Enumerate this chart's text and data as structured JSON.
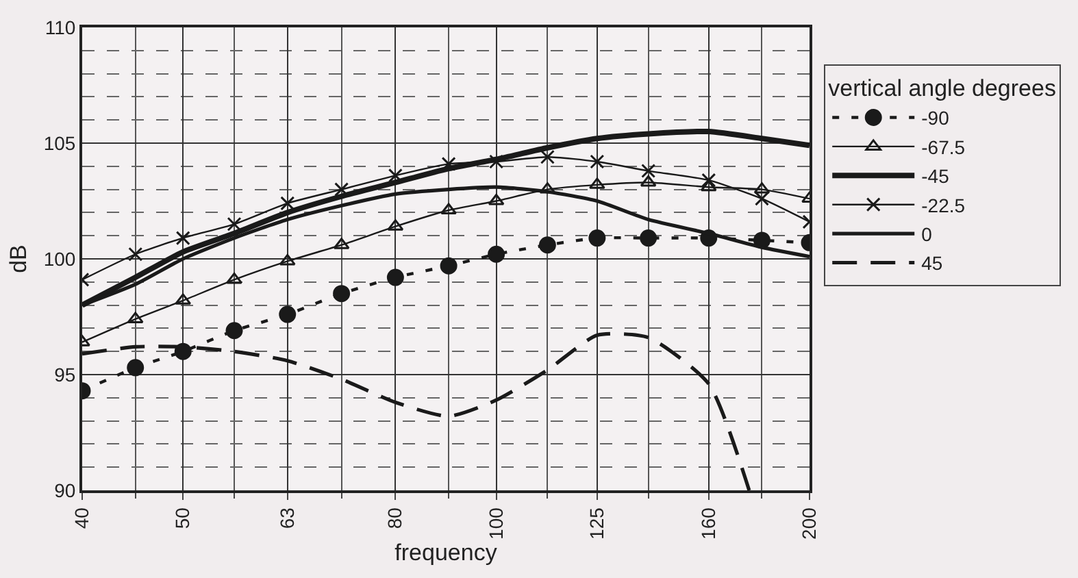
{
  "chart_data": {
    "type": "line",
    "xlabel": "frequency",
    "ylabel": "dB",
    "legend_title": "vertical angle degrees",
    "log": "x",
    "grid": true,
    "legend": "right",
    "x": [
      40,
      45,
      50,
      56,
      63,
      71,
      80,
      90,
      100,
      112,
      125,
      140,
      160,
      180,
      200
    ],
    "xlim": [
      40,
      200
    ],
    "xticks": [
      40,
      {
        "value": 45,
        "label": null
      },
      50,
      {
        "value": 56,
        "label": null
      },
      63,
      {
        "value": 71,
        "label": null
      },
      80,
      {
        "value": 90,
        "label": null
      },
      100,
      {
        "value": 112,
        "label": null
      },
      125,
      {
        "value": 140,
        "label": null
      },
      160,
      {
        "value": 180,
        "label": null
      },
      200
    ],
    "ylim": [
      90,
      110
    ],
    "yticks": [
      90,
      {
        "value": 91,
        "label": null
      },
      {
        "value": 92,
        "label": null
      },
      {
        "value": 93,
        "label": null
      },
      {
        "value": 94,
        "label": null
      },
      95,
      {
        "value": 96,
        "label": null
      },
      {
        "value": 97,
        "label": null
      },
      {
        "value": 98,
        "label": null
      },
      {
        "value": 99,
        "label": null
      },
      100,
      {
        "value": 101,
        "label": null
      },
      {
        "value": 102,
        "label": null
      },
      {
        "value": 103,
        "label": null
      },
      {
        "value": 104,
        "label": null
      },
      105,
      {
        "value": 106,
        "label": null
      },
      {
        "value": 107,
        "label": null
      },
      {
        "value": 108,
        "label": null
      },
      {
        "value": 109,
        "label": null
      },
      110
    ],
    "series": [
      {
        "name": "-90",
        "color": "#1a1a1a",
        "marker": "circle",
        "line_style": "dashed",
        "values": [
          94.3,
          95.3,
          96.0,
          96.9,
          97.6,
          98.5,
          99.2,
          99.7,
          100.2,
          100.6,
          100.9,
          100.9,
          100.9,
          100.8,
          100.7
        ]
      },
      {
        "name": "-67.5",
        "color": "#1a1a1a",
        "marker": "triangle",
        "line_style": "solid",
        "values": [
          96.4,
          97.4,
          98.2,
          99.1,
          99.9,
          100.6,
          101.4,
          102.1,
          102.5,
          103.0,
          103.2,
          103.3,
          103.1,
          103.0,
          102.6
        ]
      },
      {
        "name": "-45",
        "color": "#1a1a1a",
        "marker": "none",
        "line_style": "solid",
        "values": [
          98.0,
          99.2,
          100.3,
          101.1,
          102.0,
          102.7,
          103.3,
          103.9,
          104.3,
          104.8,
          105.2,
          105.4,
          105.5,
          105.2,
          104.9
        ]
      },
      {
        "name": "-22.5",
        "color": "#1a1a1a",
        "marker": "cross",
        "line_style": "solid",
        "values": [
          99.1,
          100.2,
          100.9,
          101.5,
          102.4,
          103.0,
          103.6,
          104.1,
          104.2,
          104.4,
          104.2,
          103.8,
          103.4,
          102.6,
          101.6
        ]
      },
      {
        "name": "0",
        "color": "#1a1a1a",
        "marker": "none",
        "line_style": "solid",
        "values": [
          98.0,
          98.9,
          100.0,
          100.9,
          101.7,
          102.3,
          102.8,
          103.0,
          103.1,
          102.9,
          102.5,
          101.7,
          101.1,
          100.5,
          100.1
        ]
      },
      {
        "name": "45",
        "color": "#1a1a1a",
        "marker": "none",
        "line_style": "dashed",
        "x": [
          40,
          45,
          50,
          56,
          63,
          71,
          80,
          90,
          100,
          112,
          125,
          140,
          160,
          175
        ],
        "values": [
          95.9,
          96.2,
          96.2,
          96.0,
          95.6,
          94.8,
          93.8,
          93.2,
          93.9,
          95.2,
          96.7,
          96.6,
          94.6,
          90.0
        ]
      }
    ]
  }
}
